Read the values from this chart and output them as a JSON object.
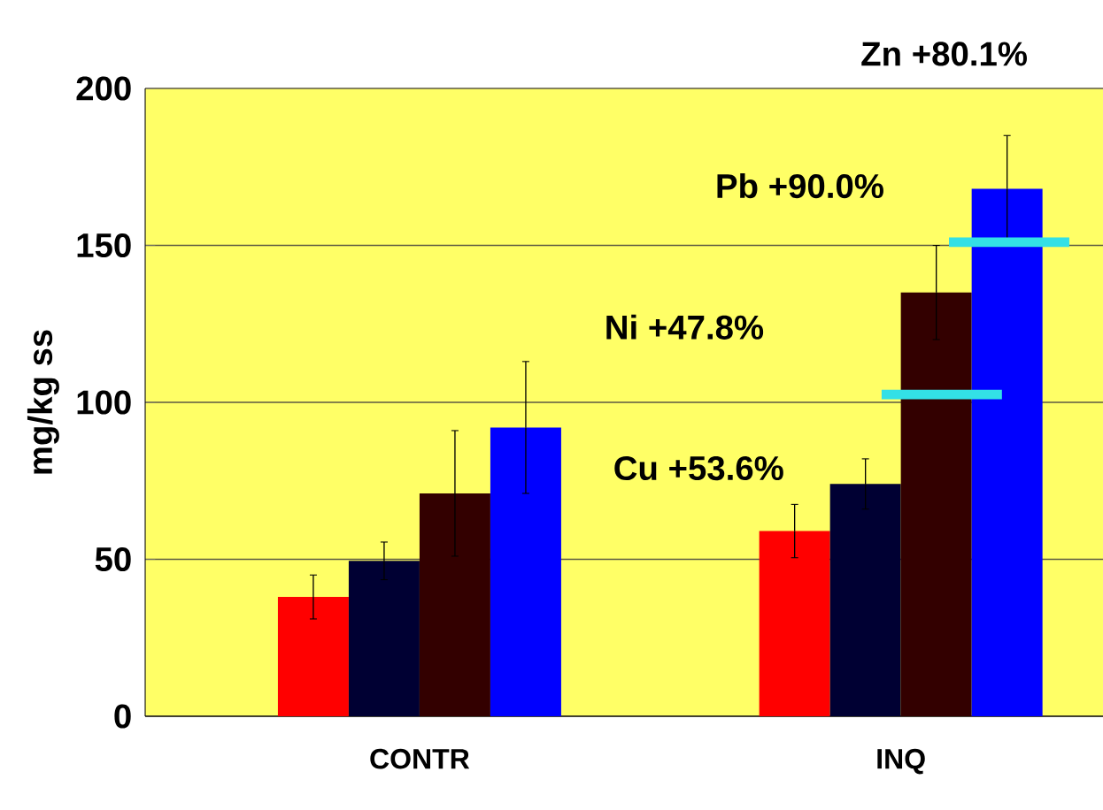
{
  "chart_data": {
    "type": "bar",
    "ylabel": "mg/kg ss",
    "categories": [
      "CONTR",
      "INQ"
    ],
    "ylim": [
      0,
      200
    ],
    "yticks": [
      0,
      50,
      100,
      150,
      200
    ],
    "grid": "y",
    "series": [
      {
        "color": "#ff0000",
        "values": [
          38,
          59
        ],
        "errors": [
          7,
          8.5
        ]
      },
      {
        "color": "#000033",
        "values": [
          49.5,
          74
        ],
        "errors": [
          6,
          8
        ]
      },
      {
        "color": "#330000",
        "values": [
          71,
          135
        ],
        "errors": [
          20,
          15
        ]
      },
      {
        "color": "#0000ff",
        "values": [
          92,
          168
        ],
        "errors": [
          21,
          17
        ]
      }
    ],
    "ref_lines": [
      {
        "axis": "y",
        "value": 102.5,
        "color": "#33e0e6"
      },
      {
        "axis": "y",
        "value": 151,
        "color": "#33e0e6"
      }
    ],
    "annotations": [
      "Cu +53.6%",
      "Ni +47.8%",
      "Pb +90.0%",
      "Zn +80.1%"
    ]
  }
}
